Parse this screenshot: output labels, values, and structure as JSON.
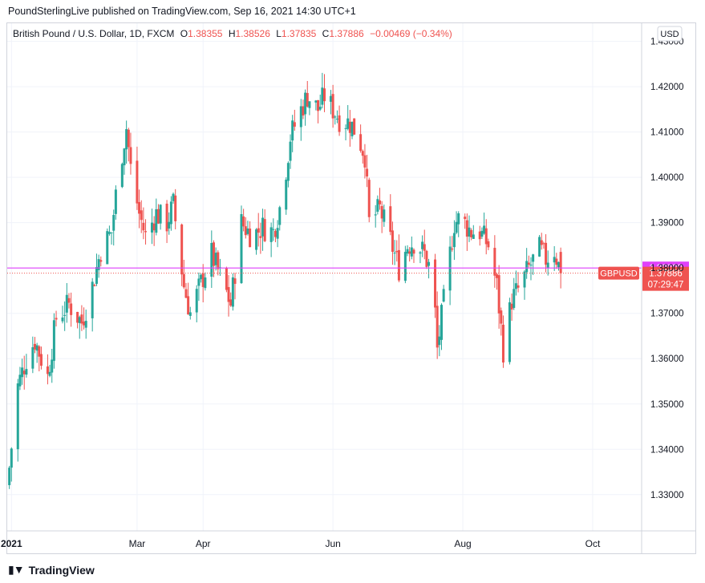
{
  "header": {
    "publisher_line": "PoundSterlingLive published on TradingView.com, Sep 16, 2021 14:30 UTC+1"
  },
  "legend": {
    "symbol": "British Pound / U.S. Dollar, 1D, FXCM",
    "open_label": "O",
    "open": "1.38355",
    "high_label": "H",
    "high": "1.38526",
    "low_label": "L",
    "low": "1.37835",
    "close_label": "C",
    "close": "1.37886",
    "change": "−0.00469 (−0.34%)"
  },
  "currency_button": "USD",
  "footer": {
    "brand": "TradingView",
    "logo_icon": "tradingview-logo-icon"
  },
  "colors": {
    "up": "#26a69a",
    "down": "#ef5350",
    "level": "#e040fb",
    "grid": "#f0f3fa",
    "axis_text": "#131722"
  },
  "chart_data": {
    "type": "candlestick",
    "title": "British Pound / U.S. Dollar, 1D, FXCM",
    "ylim": [
      1.322,
      1.434
    ],
    "y_ticks": [
      "1.33000",
      "1.34000",
      "1.35000",
      "1.36000",
      "1.37000",
      "1.38000",
      "1.39000",
      "1.40000",
      "1.41000",
      "1.42000",
      "1.43000"
    ],
    "x_ticks": [
      {
        "label": "2021",
        "date": "2021-01-01"
      },
      {
        "label": "Mar",
        "date": "2021-03-01"
      },
      {
        "label": "Apr",
        "date": "2021-04-01"
      },
      {
        "label": "Jun",
        "date": "2021-06-01"
      },
      {
        "label": "Aug",
        "date": "2021-08-01"
      },
      {
        "label": "Oct",
        "date": "2021-10-01"
      }
    ],
    "x_range": [
      "2020-12-30",
      "2021-10-24"
    ],
    "price_level": {
      "value": 1.38,
      "label": "1.38000"
    },
    "last_price": {
      "symbol": "GBPUSD",
      "value": 1.37886,
      "label": "1.37886",
      "countdown": "07:29:47"
    },
    "grid": true,
    "anchors": [
      {
        "date": "2020-12-31",
        "price": 1.336
      },
      {
        "date": "2021-01-04",
        "price": 1.354
      },
      {
        "date": "2021-01-08",
        "price": 1.36
      },
      {
        "date": "2021-01-12",
        "price": 1.364
      },
      {
        "date": "2021-01-18",
        "price": 1.356
      },
      {
        "date": "2021-01-22",
        "price": 1.369
      },
      {
        "date": "2021-01-28",
        "price": 1.372
      },
      {
        "date": "2021-02-03",
        "price": 1.368
      },
      {
        "date": "2021-02-08",
        "price": 1.376
      },
      {
        "date": "2021-02-12",
        "price": 1.384
      },
      {
        "date": "2021-02-17",
        "price": 1.388
      },
      {
        "date": "2021-02-20",
        "price": 1.4
      },
      {
        "date": "2021-02-24",
        "price": 1.411
      },
      {
        "date": "2021-02-26",
        "price": 1.402
      },
      {
        "date": "2021-03-02",
        "price": 1.392
      },
      {
        "date": "2021-03-05",
        "price": 1.387
      },
      {
        "date": "2021-03-10",
        "price": 1.392
      },
      {
        "date": "2021-03-15",
        "price": 1.39
      },
      {
        "date": "2021-03-18",
        "price": 1.394
      },
      {
        "date": "2021-03-23",
        "price": 1.376
      },
      {
        "date": "2021-03-26",
        "price": 1.37
      },
      {
        "date": "2021-04-01",
        "price": 1.378
      },
      {
        "date": "2021-04-05",
        "price": 1.383
      },
      {
        "date": "2021-04-10",
        "price": 1.377
      },
      {
        "date": "2021-04-14",
        "price": 1.372
      },
      {
        "date": "2021-04-19",
        "price": 1.39
      },
      {
        "date": "2021-04-24",
        "price": 1.387
      },
      {
        "date": "2021-04-29",
        "price": 1.389
      },
      {
        "date": "2021-05-04",
        "price": 1.388
      },
      {
        "date": "2021-05-08",
        "price": 1.395
      },
      {
        "date": "2021-05-12",
        "price": 1.409
      },
      {
        "date": "2021-05-17",
        "price": 1.415
      },
      {
        "date": "2021-05-20",
        "price": 1.418
      },
      {
        "date": "2021-05-25",
        "price": 1.415
      },
      {
        "date": "2021-05-28",
        "price": 1.418
      },
      {
        "date": "2021-06-01",
        "price": 1.415
      },
      {
        "date": "2021-06-04",
        "price": 1.413
      },
      {
        "date": "2021-06-09",
        "price": 1.412
      },
      {
        "date": "2021-06-12",
        "price": 1.41
      },
      {
        "date": "2021-06-16",
        "price": 1.405
      },
      {
        "date": "2021-06-18",
        "price": 1.39
      },
      {
        "date": "2021-06-23",
        "price": 1.393
      },
      {
        "date": "2021-06-28",
        "price": 1.386
      },
      {
        "date": "2021-07-02",
        "price": 1.38
      },
      {
        "date": "2021-07-06",
        "price": 1.385
      },
      {
        "date": "2021-07-10",
        "price": 1.386
      },
      {
        "date": "2021-07-14",
        "price": 1.383
      },
      {
        "date": "2021-07-18",
        "price": 1.378
      },
      {
        "date": "2021-07-20",
        "price": 1.362
      },
      {
        "date": "2021-07-24",
        "price": 1.376
      },
      {
        "date": "2021-07-28",
        "price": 1.39
      },
      {
        "date": "2021-07-31",
        "price": 1.391
      },
      {
        "date": "2021-08-05",
        "price": 1.388
      },
      {
        "date": "2021-08-09",
        "price": 1.388
      },
      {
        "date": "2021-08-13",
        "price": 1.385
      },
      {
        "date": "2021-08-17",
        "price": 1.376
      },
      {
        "date": "2021-08-20",
        "price": 1.362
      },
      {
        "date": "2021-08-24",
        "price": 1.373
      },
      {
        "date": "2021-08-28",
        "price": 1.376
      },
      {
        "date": "2021-09-01",
        "price": 1.38
      },
      {
        "date": "2021-09-06",
        "price": 1.384
      },
      {
        "date": "2021-09-09",
        "price": 1.382
      },
      {
        "date": "2021-09-13",
        "price": 1.384
      },
      {
        "date": "2021-09-16",
        "price": 1.3789
      }
    ]
  }
}
